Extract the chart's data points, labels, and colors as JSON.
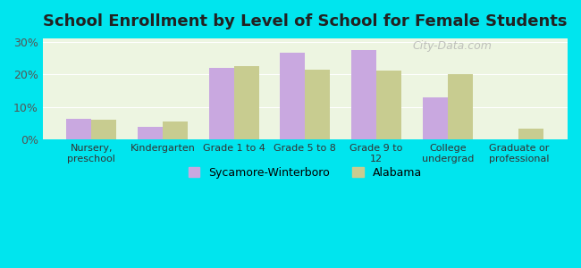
{
  "title": "School Enrollment by Level of School for Female Students",
  "categories": [
    "Nursery,\npreschool",
    "Kindergarten",
    "Grade 1 to 4",
    "Grade 5 to 8",
    "Grade 9 to\n12",
    "College\nundergrad",
    "Graduate or\nprofessional"
  ],
  "sycamore": [
    6.5,
    4.0,
    22.0,
    26.5,
    27.5,
    13.0,
    0
  ],
  "alabama": [
    6.0,
    5.5,
    22.5,
    21.5,
    21.0,
    20.0,
    3.5
  ],
  "sycamore_color": "#c9a8e0",
  "alabama_color": "#c8cc90",
  "background_outer": "#00e5ee",
  "background_inner": "#edf5e1",
  "ylim": [
    0,
    31
  ],
  "yticks": [
    0,
    10,
    20,
    30
  ],
  "ytick_labels": [
    "0%",
    "10%",
    "20%",
    "30%"
  ],
  "bar_width": 0.35,
  "legend_label_1": "Sycamore-Winterboro",
  "legend_label_2": "Alabama",
  "watermark": "City-Data.com"
}
